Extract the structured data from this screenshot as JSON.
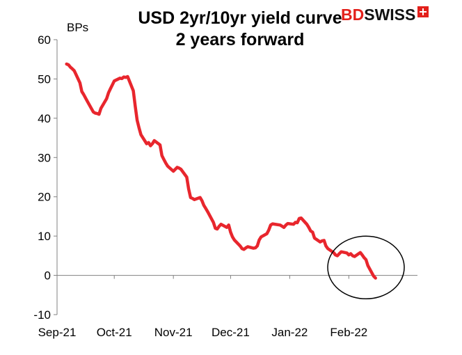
{
  "logo": {
    "brand_part1": "BD",
    "brand_part2": "SWISS",
    "mark": "swiss-cross-icon",
    "brand_color": "#e3201b"
  },
  "chart_data": {
    "type": "line",
    "title_line1": "USD 2yr/10yr yield curve",
    "title_line2": "2 years forward",
    "ylabel": "BPs",
    "xlabel": "",
    "ylim": [
      -10,
      60
    ],
    "yticks": [
      -10,
      0,
      10,
      20,
      30,
      40,
      50,
      60
    ],
    "ytick_labels": [
      "-10",
      "0",
      "10",
      "20",
      "30",
      "40",
      "50",
      "60"
    ],
    "xlim": [
      "2021-09-01",
      "2022-03-09"
    ],
    "x_tick_labels": [
      {
        "date": "2021-09-01",
        "label": "Sep-21"
      },
      {
        "date": "2021-10-01",
        "label": "Oct-21"
      },
      {
        "date": "2021-11-01",
        "label": "Nov-21"
      },
      {
        "date": "2021-12-01",
        "label": "Dec-21"
      },
      {
        "date": "2022-01-01",
        "label": "Jan-22"
      },
      {
        "date": "2022-02-01",
        "label": "Feb-22"
      }
    ],
    "grid": false,
    "legend": "none",
    "line_color": "#e8262d",
    "annotation": {
      "shape": "circle",
      "center_date": "2022-02-10",
      "center_value": 2,
      "description": "highlights drop below zero"
    },
    "series": [
      {
        "points": [
          [
            "2021-09-06",
            53.8
          ],
          [
            "2021-09-07",
            53.6
          ],
          [
            "2021-09-08",
            53.0
          ],
          [
            "2021-09-09",
            52.6
          ],
          [
            "2021-09-10",
            52.1
          ],
          [
            "2021-09-13",
            49.0
          ],
          [
            "2021-09-14",
            46.8
          ],
          [
            "2021-09-15",
            46.0
          ],
          [
            "2021-09-16",
            45.1
          ],
          [
            "2021-09-17",
            44.2
          ],
          [
            "2021-09-20",
            41.6
          ],
          [
            "2021-09-21",
            41.3
          ],
          [
            "2021-09-22",
            41.2
          ],
          [
            "2021-09-23",
            41.0
          ],
          [
            "2021-09-24",
            42.5
          ],
          [
            "2021-09-27",
            45.0
          ],
          [
            "2021-09-28",
            46.5
          ],
          [
            "2021-09-29",
            47.5
          ],
          [
            "2021-09-30",
            48.5
          ],
          [
            "2021-10-01",
            49.5
          ],
          [
            "2021-10-04",
            50.2
          ],
          [
            "2021-10-05",
            50.1
          ],
          [
            "2021-10-06",
            50.5
          ],
          [
            "2021-10-07",
            50.4
          ],
          [
            "2021-10-08",
            50.6
          ],
          [
            "2021-10-11",
            47.0
          ],
          [
            "2021-10-12",
            43.0
          ],
          [
            "2021-10-13",
            39.5
          ],
          [
            "2021-10-14",
            37.5
          ],
          [
            "2021-10-15",
            35.8
          ],
          [
            "2021-10-18",
            33.5
          ],
          [
            "2021-10-19",
            33.8
          ],
          [
            "2021-10-20",
            33.0
          ],
          [
            "2021-10-21",
            33.5
          ],
          [
            "2021-10-22",
            34.3
          ],
          [
            "2021-10-25",
            33.2
          ],
          [
            "2021-10-26",
            30.5
          ],
          [
            "2021-10-27",
            29.5
          ],
          [
            "2021-10-28",
            28.6
          ],
          [
            "2021-10-29",
            27.8
          ],
          [
            "2021-11-01",
            26.5
          ],
          [
            "2021-11-02",
            27.0
          ],
          [
            "2021-11-03",
            27.5
          ],
          [
            "2021-11-04",
            27.3
          ],
          [
            "2021-11-05",
            27.0
          ],
          [
            "2021-11-08",
            25.0
          ],
          [
            "2021-11-09",
            22.0
          ],
          [
            "2021-11-10",
            19.8
          ],
          [
            "2021-11-11",
            19.6
          ],
          [
            "2021-11-12",
            19.3
          ],
          [
            "2021-11-15",
            19.8
          ],
          [
            "2021-11-16",
            19.0
          ],
          [
            "2021-11-17",
            17.8
          ],
          [
            "2021-11-18",
            17.0
          ],
          [
            "2021-11-19",
            16.2
          ],
          [
            "2021-11-22",
            13.5
          ],
          [
            "2021-11-23",
            12.0
          ],
          [
            "2021-11-24",
            11.8
          ],
          [
            "2021-11-25",
            12.5
          ],
          [
            "2021-11-26",
            13.0
          ],
          [
            "2021-11-29",
            12.2
          ],
          [
            "2021-11-30",
            12.8
          ],
          [
            "2021-12-01",
            11.0
          ],
          [
            "2021-12-02",
            9.8
          ],
          [
            "2021-12-03",
            9.0
          ],
          [
            "2021-12-06",
            7.5
          ],
          [
            "2021-12-07",
            6.8
          ],
          [
            "2021-12-08",
            6.6
          ],
          [
            "2021-12-09",
            7.0
          ],
          [
            "2021-12-10",
            7.3
          ],
          [
            "2021-12-13",
            6.9
          ],
          [
            "2021-12-14",
            7.0
          ],
          [
            "2021-12-15",
            7.5
          ],
          [
            "2021-12-16",
            9.0
          ],
          [
            "2021-12-17",
            9.8
          ],
          [
            "2021-12-20",
            10.6
          ],
          [
            "2021-12-21",
            11.5
          ],
          [
            "2021-12-22",
            12.8
          ],
          [
            "2021-12-23",
            13.1
          ],
          [
            "2021-12-27",
            12.8
          ],
          [
            "2021-12-28",
            12.5
          ],
          [
            "2021-12-29",
            12.2
          ],
          [
            "2021-12-30",
            12.8
          ],
          [
            "2021-12-31",
            13.2
          ],
          [
            "2022-01-03",
            13.0
          ],
          [
            "2022-01-04",
            13.5
          ],
          [
            "2022-01-05",
            13.4
          ],
          [
            "2022-01-06",
            14.5
          ],
          [
            "2022-01-07",
            14.6
          ],
          [
            "2022-01-10",
            13.0
          ],
          [
            "2022-01-11",
            12.2
          ],
          [
            "2022-01-12",
            11.3
          ],
          [
            "2022-01-13",
            11.0
          ],
          [
            "2022-01-14",
            9.5
          ],
          [
            "2022-01-17",
            8.5
          ],
          [
            "2022-01-18",
            8.8
          ],
          [
            "2022-01-19",
            8.9
          ],
          [
            "2022-01-20",
            7.5
          ],
          [
            "2022-01-21",
            6.8
          ],
          [
            "2022-01-24",
            5.8
          ],
          [
            "2022-01-25",
            5.2
          ],
          [
            "2022-01-26",
            5.0
          ],
          [
            "2022-01-27",
            5.5
          ],
          [
            "2022-01-28",
            6.0
          ],
          [
            "2022-01-31",
            5.7
          ],
          [
            "2022-02-01",
            5.2
          ],
          [
            "2022-02-02",
            5.5
          ],
          [
            "2022-02-03",
            5.0
          ],
          [
            "2022-02-04",
            4.8
          ],
          [
            "2022-02-07",
            5.8
          ],
          [
            "2022-02-08",
            5.2
          ],
          [
            "2022-02-09",
            4.5
          ],
          [
            "2022-02-10",
            4.0
          ],
          [
            "2022-02-11",
            2.5
          ],
          [
            "2022-02-14",
            -0.2
          ],
          [
            "2022-02-15",
            -0.7
          ]
        ]
      }
    ]
  }
}
